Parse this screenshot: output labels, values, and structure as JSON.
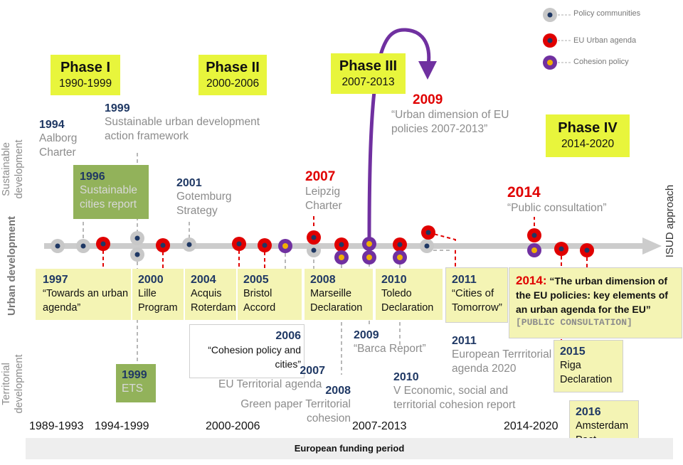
{
  "legend": {
    "policy_communities": "Policy communities",
    "eu_urban_agenda": "EU Urban agenda",
    "cohesion_policy": "Cohesion policy"
  },
  "colors": {
    "policy": "#c8c8c8",
    "urban": "#e00000",
    "cohesion": "#7030a0",
    "dark": "#1f3864",
    "phase": "#e8f53c",
    "box": "#f4f4b4",
    "green": "#92b25a"
  },
  "side_labels": {
    "sustainable": "Sustainable development",
    "urban": "Urban development",
    "territorial": "Territorial development",
    "isud": "ISUD approach"
  },
  "phases": [
    {
      "title": "Phase I",
      "range": "1990-1999"
    },
    {
      "title": "Phase II",
      "range": "2000-2006"
    },
    {
      "title": "Phase III",
      "range": "2007-2013"
    },
    {
      "title": "Phase IV",
      "range": "2014-2020"
    }
  ],
  "top_events": {
    "e1994": {
      "year": "1994",
      "line1": "Aalborg",
      "line2": "Charter"
    },
    "e1999": {
      "year": "1999",
      "line1": "Sustainable urban development",
      "line2": "action framework"
    },
    "e1996": {
      "year": "1996",
      "line1": "Sustainable",
      "line2": "cities report"
    },
    "e2001": {
      "year": "2001",
      "line1": "Gotemburg",
      "line2": "Strategy"
    },
    "e2007": {
      "year": "2007",
      "line1": "Leipzig",
      "line2": "Charter"
    },
    "e2009": {
      "year": "2009",
      "line1": "“Urban dimension of EU",
      "line2": "policies 2007-2013”"
    },
    "e2014": {
      "year": "2014",
      "line1": "“Public consultation”"
    }
  },
  "bottom_boxes": {
    "b1997": {
      "year": "1997",
      "line1": "“Towards an urban",
      "line2": "agenda”"
    },
    "b2000": {
      "year": "2000",
      "line1": "Lille",
      "line2": "Program"
    },
    "b2004": {
      "year": "2004",
      "line1": "Acquis",
      "line2": "Roterdam"
    },
    "b2005": {
      "year": "2005",
      "line1": "Bristol",
      "line2": "Accord"
    },
    "b2008": {
      "year": "2008",
      "line1": "Marseille",
      "line2": "Declaration"
    },
    "b2010": {
      "year": "2010",
      "line1": "Toledo",
      "line2": "Declaration"
    },
    "b2011": {
      "year": "2011",
      "line1": "“Cities  of",
      "line2": "Tomorrow”"
    },
    "b2014": {
      "year": "2014",
      "colon": ":",
      "line1": " “The urban dimension of",
      "line2": "the EU policies: key elements of",
      "line3": "an urban agenda for the EU”",
      "line4": "[PUBLIC CONSULTATION]"
    }
  },
  "lower_events": {
    "e2006": {
      "year": "2006",
      "line1": "“Cohesion policy and",
      "line2": "cities”"
    },
    "e2009b": {
      "year": "2009",
      "line1": "“Barca Report”"
    },
    "e2011b": {
      "year": "2011",
      "line1": "European Terrritorial",
      "line2": "agenda 2020"
    },
    "e2015": {
      "year": "2015",
      "line1": "Riga",
      "line2": "Declaration"
    },
    "e1999ets": {
      "year": "1999",
      "line1": "ETS"
    },
    "e2007b": {
      "year": "2007",
      "line1": "EU Territorial  agenda"
    },
    "e2008b": {
      "year": "2008",
      "line1": "Green paper Territorial",
      "line2": "cohesion"
    },
    "e2010b": {
      "year": "2010",
      "line1": "V Economic, social and",
      "line2": "territorial  cohesion report"
    },
    "e2016": {
      "year": "2016",
      "line1": "Amsterdam",
      "line2": "Pact"
    }
  },
  "periods": [
    "1989-1993",
    "1994-1999",
    "2000-2006",
    "2007-2013",
    "2014-2020"
  ],
  "funding_label": "European funding period"
}
